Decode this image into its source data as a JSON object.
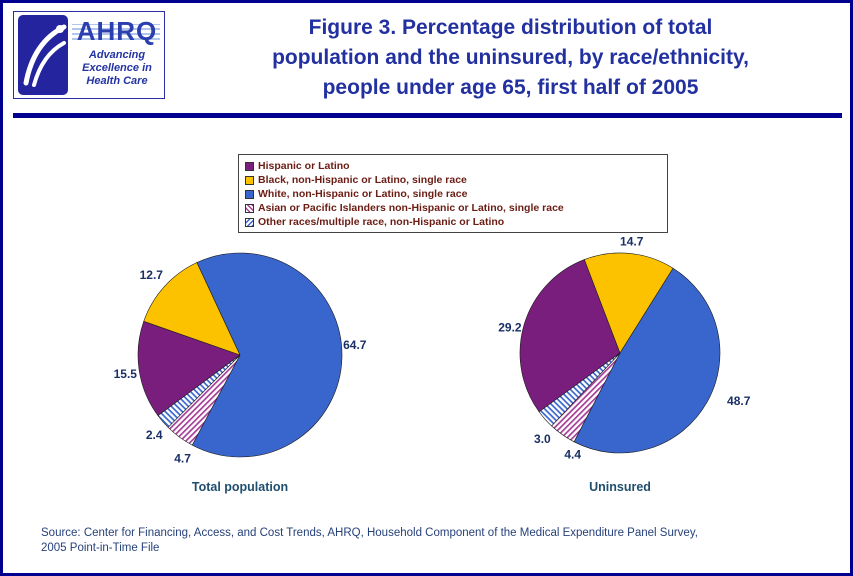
{
  "title": {
    "lines": [
      "Figure 3. Percentage distribution of total",
      "population and the uninsured, by race/ethnicity,",
      "people under age 65, first half of 2005"
    ]
  },
  "header": {
    "ahrq_wordmark": "AHRQ",
    "tagline_lines": [
      "Advancing",
      "Excellence in",
      "Health Care"
    ]
  },
  "legend": {
    "items": [
      {
        "label": "Hispanic or Latino",
        "fill": "purple"
      },
      {
        "label": "Black, non-Hispanic or Latino, single race",
        "fill": "gold"
      },
      {
        "label": "White, non-Hispanic or Latino, single race",
        "fill": "blue"
      },
      {
        "label": "Asian or Pacific Islanders non-Hispanic or Latino, single race",
        "fill": "hatch-asian"
      },
      {
        "label": "Other races/multiple race, non-Hispanic or Latino",
        "fill": "hatch-other"
      }
    ]
  },
  "chart_data": [
    {
      "type": "pie",
      "title": "Total population",
      "start_angle": 233.5,
      "radius": 102,
      "slices": [
        {
          "label": "Hispanic or Latino",
          "value": 15.5,
          "display": "15.5",
          "fill": "purple",
          "label_angle": 260.5,
          "label_dist": 1.14
        },
        {
          "label": "Black, non-Hispanic or Latino, single race",
          "value": 12.7,
          "display": "12.7",
          "fill": "gold",
          "label_angle": 312,
          "label_dist": 1.17
        },
        {
          "label": "White, non-Hispanic or Latino, single race",
          "value": 64.7,
          "display": "64.7",
          "fill": "blue",
          "label_angle": 85,
          "label_dist": 1.13
        },
        {
          "label": "Asian or Pacific Islanders non-Hispanic or Latino, single race",
          "value": 4.7,
          "display": "4.7",
          "fill": "hatch-asian",
          "label_angle": 209,
          "label_dist": 1.16
        },
        {
          "label": "Other races/multiple race, non-Hispanic or Latino",
          "value": 2.4,
          "display": "2.4",
          "fill": "hatch-other",
          "label_angle": 227,
          "label_dist": 1.15
        }
      ]
    },
    {
      "type": "pie",
      "title": "Uninsured",
      "start_angle": 234,
      "radius": 100,
      "slices": [
        {
          "label": "Hispanic or Latino",
          "value": 29.2,
          "display": "29.2",
          "fill": "purple",
          "label_angle": 283,
          "label_dist": 1.13
        },
        {
          "label": "Black, non-Hispanic or Latino, single race",
          "value": 14.7,
          "display": "14.7",
          "fill": "gold",
          "label_angle": 6,
          "label_dist": 1.12
        },
        {
          "label": "White, non-Hispanic or Latino, single race",
          "value": 48.7,
          "display": "48.7",
          "fill": "blue",
          "label_angle": 112,
          "label_dist": 1.28
        },
        {
          "label": "Asian or Pacific Islanders non-Hispanic or Latino, single race",
          "value": 4.4,
          "display": "4.4",
          "fill": "hatch-asian",
          "label_angle": 205,
          "label_dist": 1.12
        },
        {
          "label": "Other races/multiple race, non-Hispanic or Latino",
          "value": 3.0,
          "display": "3.0",
          "fill": "hatch-other",
          "label_angle": 222,
          "label_dist": 1.16
        }
      ]
    }
  ],
  "source": {
    "lines": [
      "Source: Center for Financing, Access, and Cost Trends, AHRQ, Household Component of the Medical Expenditure Panel Survey,",
      "2005 Point-in-Time File"
    ]
  },
  "colors": {
    "purple": "#7A1E7E",
    "gold": "#FCC200",
    "blue": "#3966CC",
    "hatch_asian_stripe": "#A43E97",
    "hatch_other_stripe": "#3966CC",
    "title": "#2230A0",
    "border": "#000090",
    "number_label": "#1A2F66",
    "caption": "#1F4E6E",
    "source_text": "#27417B",
    "legend_text": "#6B1D14"
  }
}
